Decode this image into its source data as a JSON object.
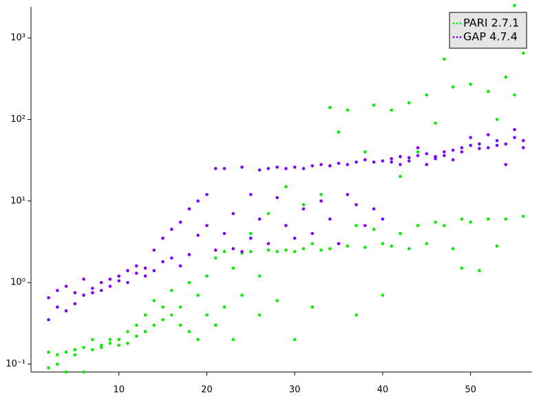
{
  "chart_data": {
    "type": "scatter",
    "log_y": true,
    "legend_position": "upper right",
    "xlim": [
      0,
      57
    ],
    "ylim": [
      0.08,
      2400
    ],
    "xticks": [
      10,
      20,
      30,
      40,
      50
    ],
    "yticks": [
      {
        "value": 0.1,
        "label": "10⁻¹"
      },
      {
        "value": 1,
        "label": "10⁰"
      },
      {
        "value": 10,
        "label": "10¹"
      },
      {
        "value": 100,
        "label": "10²"
      },
      {
        "value": 1000,
        "label": "10³"
      }
    ],
    "series": [
      {
        "name": "PARI 2.7.1",
        "color": "#00ee00",
        "x": [
          2,
          2,
          3,
          3,
          4,
          4,
          5,
          5,
          6,
          6,
          7,
          7,
          8,
          8,
          9,
          9,
          10,
          10,
          11,
          11,
          12,
          12,
          13,
          13,
          14,
          14,
          15,
          15,
          16,
          16,
          17,
          17,
          18,
          18,
          19,
          19,
          20,
          20,
          21,
          21,
          22,
          22,
          23,
          23,
          24,
          24,
          25,
          25,
          26,
          26,
          27,
          27,
          28,
          28,
          29,
          29,
          30,
          30,
          31,
          31,
          32,
          32,
          33,
          33,
          34,
          34,
          35,
          35,
          36,
          36,
          37,
          37,
          38,
          38,
          39,
          39,
          40,
          40,
          41,
          41,
          42,
          42,
          43,
          43,
          44,
          44,
          45,
          45,
          46,
          46,
          47,
          47,
          48,
          48,
          49,
          49,
          50,
          50,
          51,
          51,
          52,
          52,
          53,
          53,
          54,
          54,
          55,
          55,
          56,
          56
        ],
        "values": [
          0.09,
          0.14,
          0.13,
          0.1,
          0.14,
          0.08,
          0.15,
          0.13,
          0.16,
          0.08,
          0.15,
          0.2,
          0.17,
          0.16,
          0.18,
          0.2,
          0.2,
          0.17,
          0.25,
          0.18,
          0.3,
          0.22,
          0.25,
          0.4,
          0.3,
          0.6,
          0.35,
          0.5,
          0.4,
          0.8,
          0.5,
          0.3,
          1.0,
          0.25,
          0.7,
          0.2,
          1.2,
          0.4,
          2,
          0.3,
          2.4,
          0.5,
          0.2,
          1.5,
          2.3,
          0.7,
          2.4,
          4,
          0.4,
          1.2,
          2.5,
          7,
          2.4,
          0.6,
          15,
          2.5,
          2.4,
          0.2,
          9,
          2.6,
          0.5,
          3,
          2.5,
          12,
          140,
          2.6,
          3,
          70,
          2.8,
          130,
          5,
          0.4,
          2.7,
          40,
          150,
          4.5,
          3,
          0.7,
          130,
          2.8,
          4,
          20,
          2.6,
          160,
          5,
          40,
          200,
          3,
          5.5,
          90,
          550,
          5,
          250,
          2.6,
          6,
          1.5,
          270,
          5.5,
          1.4,
          50,
          6,
          220,
          2.8,
          100,
          330,
          6,
          2500,
          200,
          650,
          6.5
        ]
      },
      {
        "name": "GAP 4.7.4",
        "color": "#7f00ff",
        "x": [
          2,
          2,
          3,
          3,
          4,
          4,
          5,
          5,
          6,
          6,
          7,
          7,
          8,
          8,
          9,
          9,
          10,
          10,
          11,
          11,
          12,
          12,
          13,
          13,
          14,
          14,
          15,
          15,
          16,
          16,
          17,
          17,
          18,
          18,
          19,
          19,
          20,
          20,
          21,
          21,
          22,
          22,
          23,
          23,
          24,
          24,
          25,
          25,
          26,
          26,
          27,
          27,
          28,
          28,
          29,
          29,
          30,
          30,
          31,
          31,
          32,
          32,
          33,
          33,
          34,
          34,
          35,
          35,
          36,
          36,
          37,
          37,
          38,
          38,
          39,
          39,
          40,
          40,
          41,
          41,
          42,
          42,
          43,
          43,
          44,
          44,
          45,
          45,
          46,
          46,
          47,
          47,
          48,
          48,
          49,
          49,
          50,
          50,
          51,
          51,
          52,
          52,
          53,
          53,
          54,
          54,
          55,
          55,
          56,
          56
        ],
        "values": [
          0.65,
          0.35,
          0.8,
          0.5,
          0.45,
          0.9,
          0.75,
          0.55,
          0.7,
          1.1,
          0.85,
          0.75,
          1.0,
          0.8,
          1.1,
          0.9,
          1.05,
          1.2,
          1.4,
          1.0,
          1.3,
          1.6,
          1.5,
          1.2,
          2.5,
          1.4,
          1.8,
          3.5,
          2.0,
          4.5,
          1.6,
          5.5,
          8,
          2.2,
          3.8,
          10,
          5,
          12,
          25,
          2.5,
          25,
          4,
          2.6,
          7,
          26,
          2.4,
          12,
          3.5,
          24,
          6,
          25,
          3,
          26,
          11,
          25,
          5,
          26,
          3.5,
          25,
          8,
          27,
          4,
          28,
          10,
          27,
          6,
          29,
          3,
          28,
          12,
          30,
          9,
          32,
          5,
          30,
          8,
          31,
          6,
          33,
          30,
          35,
          28,
          34,
          31,
          36,
          45,
          38,
          28,
          35,
          33,
          40,
          36,
          42,
          32,
          45,
          40,
          48,
          60,
          50,
          44,
          45,
          65,
          55,
          48,
          50,
          28,
          60,
          75,
          55,
          45
        ]
      }
    ]
  }
}
